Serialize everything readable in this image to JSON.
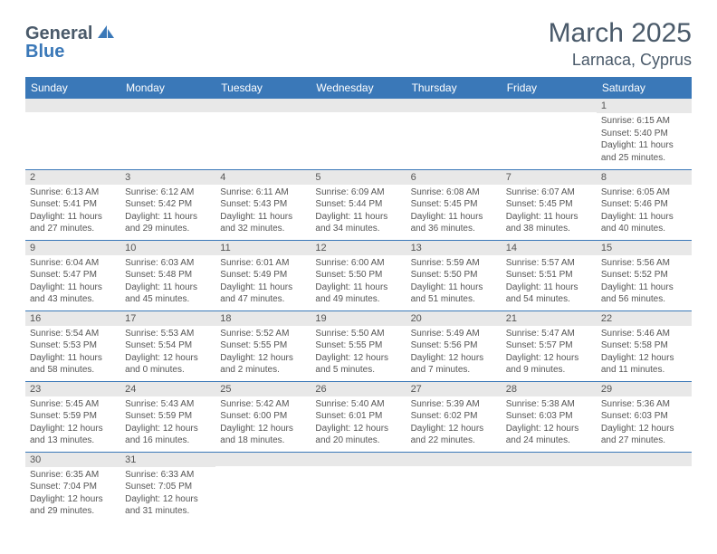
{
  "logo": {
    "part1": "General",
    "part2": "Blue"
  },
  "title": "March 2025",
  "location": "Larnaca, Cyprus",
  "weekdays": [
    "Sunday",
    "Monday",
    "Tuesday",
    "Wednesday",
    "Thursday",
    "Friday",
    "Saturday"
  ],
  "colors": {
    "header_bg": "#3a78b8",
    "header_text": "#ffffff",
    "daynum_bg": "#e8e8e8",
    "border": "#3a78b8",
    "logo_gray": "#4a5a6a",
    "logo_blue": "#3a78b8"
  },
  "weeks": [
    [
      {
        "n": "",
        "lines": []
      },
      {
        "n": "",
        "lines": []
      },
      {
        "n": "",
        "lines": []
      },
      {
        "n": "",
        "lines": []
      },
      {
        "n": "",
        "lines": []
      },
      {
        "n": "",
        "lines": []
      },
      {
        "n": "1",
        "lines": [
          "Sunrise: 6:15 AM",
          "Sunset: 5:40 PM",
          "Daylight: 11 hours",
          "and 25 minutes."
        ]
      }
    ],
    [
      {
        "n": "2",
        "lines": [
          "Sunrise: 6:13 AM",
          "Sunset: 5:41 PM",
          "Daylight: 11 hours",
          "and 27 minutes."
        ]
      },
      {
        "n": "3",
        "lines": [
          "Sunrise: 6:12 AM",
          "Sunset: 5:42 PM",
          "Daylight: 11 hours",
          "and 29 minutes."
        ]
      },
      {
        "n": "4",
        "lines": [
          "Sunrise: 6:11 AM",
          "Sunset: 5:43 PM",
          "Daylight: 11 hours",
          "and 32 minutes."
        ]
      },
      {
        "n": "5",
        "lines": [
          "Sunrise: 6:09 AM",
          "Sunset: 5:44 PM",
          "Daylight: 11 hours",
          "and 34 minutes."
        ]
      },
      {
        "n": "6",
        "lines": [
          "Sunrise: 6:08 AM",
          "Sunset: 5:45 PM",
          "Daylight: 11 hours",
          "and 36 minutes."
        ]
      },
      {
        "n": "7",
        "lines": [
          "Sunrise: 6:07 AM",
          "Sunset: 5:45 PM",
          "Daylight: 11 hours",
          "and 38 minutes."
        ]
      },
      {
        "n": "8",
        "lines": [
          "Sunrise: 6:05 AM",
          "Sunset: 5:46 PM",
          "Daylight: 11 hours",
          "and 40 minutes."
        ]
      }
    ],
    [
      {
        "n": "9",
        "lines": [
          "Sunrise: 6:04 AM",
          "Sunset: 5:47 PM",
          "Daylight: 11 hours",
          "and 43 minutes."
        ]
      },
      {
        "n": "10",
        "lines": [
          "Sunrise: 6:03 AM",
          "Sunset: 5:48 PM",
          "Daylight: 11 hours",
          "and 45 minutes."
        ]
      },
      {
        "n": "11",
        "lines": [
          "Sunrise: 6:01 AM",
          "Sunset: 5:49 PM",
          "Daylight: 11 hours",
          "and 47 minutes."
        ]
      },
      {
        "n": "12",
        "lines": [
          "Sunrise: 6:00 AM",
          "Sunset: 5:50 PM",
          "Daylight: 11 hours",
          "and 49 minutes."
        ]
      },
      {
        "n": "13",
        "lines": [
          "Sunrise: 5:59 AM",
          "Sunset: 5:50 PM",
          "Daylight: 11 hours",
          "and 51 minutes."
        ]
      },
      {
        "n": "14",
        "lines": [
          "Sunrise: 5:57 AM",
          "Sunset: 5:51 PM",
          "Daylight: 11 hours",
          "and 54 minutes."
        ]
      },
      {
        "n": "15",
        "lines": [
          "Sunrise: 5:56 AM",
          "Sunset: 5:52 PM",
          "Daylight: 11 hours",
          "and 56 minutes."
        ]
      }
    ],
    [
      {
        "n": "16",
        "lines": [
          "Sunrise: 5:54 AM",
          "Sunset: 5:53 PM",
          "Daylight: 11 hours",
          "and 58 minutes."
        ]
      },
      {
        "n": "17",
        "lines": [
          "Sunrise: 5:53 AM",
          "Sunset: 5:54 PM",
          "Daylight: 12 hours",
          "and 0 minutes."
        ]
      },
      {
        "n": "18",
        "lines": [
          "Sunrise: 5:52 AM",
          "Sunset: 5:55 PM",
          "Daylight: 12 hours",
          "and 2 minutes."
        ]
      },
      {
        "n": "19",
        "lines": [
          "Sunrise: 5:50 AM",
          "Sunset: 5:55 PM",
          "Daylight: 12 hours",
          "and 5 minutes."
        ]
      },
      {
        "n": "20",
        "lines": [
          "Sunrise: 5:49 AM",
          "Sunset: 5:56 PM",
          "Daylight: 12 hours",
          "and 7 minutes."
        ]
      },
      {
        "n": "21",
        "lines": [
          "Sunrise: 5:47 AM",
          "Sunset: 5:57 PM",
          "Daylight: 12 hours",
          "and 9 minutes."
        ]
      },
      {
        "n": "22",
        "lines": [
          "Sunrise: 5:46 AM",
          "Sunset: 5:58 PM",
          "Daylight: 12 hours",
          "and 11 minutes."
        ]
      }
    ],
    [
      {
        "n": "23",
        "lines": [
          "Sunrise: 5:45 AM",
          "Sunset: 5:59 PM",
          "Daylight: 12 hours",
          "and 13 minutes."
        ]
      },
      {
        "n": "24",
        "lines": [
          "Sunrise: 5:43 AM",
          "Sunset: 5:59 PM",
          "Daylight: 12 hours",
          "and 16 minutes."
        ]
      },
      {
        "n": "25",
        "lines": [
          "Sunrise: 5:42 AM",
          "Sunset: 6:00 PM",
          "Daylight: 12 hours",
          "and 18 minutes."
        ]
      },
      {
        "n": "26",
        "lines": [
          "Sunrise: 5:40 AM",
          "Sunset: 6:01 PM",
          "Daylight: 12 hours",
          "and 20 minutes."
        ]
      },
      {
        "n": "27",
        "lines": [
          "Sunrise: 5:39 AM",
          "Sunset: 6:02 PM",
          "Daylight: 12 hours",
          "and 22 minutes."
        ]
      },
      {
        "n": "28",
        "lines": [
          "Sunrise: 5:38 AM",
          "Sunset: 6:03 PM",
          "Daylight: 12 hours",
          "and 24 minutes."
        ]
      },
      {
        "n": "29",
        "lines": [
          "Sunrise: 5:36 AM",
          "Sunset: 6:03 PM",
          "Daylight: 12 hours",
          "and 27 minutes."
        ]
      }
    ],
    [
      {
        "n": "30",
        "lines": [
          "Sunrise: 6:35 AM",
          "Sunset: 7:04 PM",
          "Daylight: 12 hours",
          "and 29 minutes."
        ]
      },
      {
        "n": "31",
        "lines": [
          "Sunrise: 6:33 AM",
          "Sunset: 7:05 PM",
          "Daylight: 12 hours",
          "and 31 minutes."
        ]
      },
      {
        "n": "",
        "lines": []
      },
      {
        "n": "",
        "lines": []
      },
      {
        "n": "",
        "lines": []
      },
      {
        "n": "",
        "lines": []
      },
      {
        "n": "",
        "lines": []
      }
    ]
  ]
}
